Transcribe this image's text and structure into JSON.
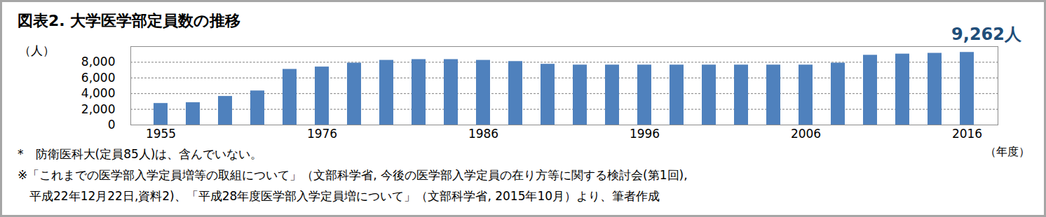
{
  "chart_data": {
    "type": "bar",
    "title": "図表2. 大学医学部定員数の推移",
    "annotation": "9,262人",
    "y_label": "（人）",
    "x_label": "（年度）",
    "categories": [
      "1955",
      null,
      null,
      null,
      null,
      "1976",
      null,
      null,
      null,
      null,
      "1986",
      null,
      null,
      null,
      null,
      "1996",
      null,
      null,
      null,
      null,
      "2006",
      null,
      null,
      null,
      null,
      "2016"
    ],
    "values": [
      2750,
      2850,
      3650,
      4350,
      7100,
      7400,
      7900,
      8250,
      8350,
      8350,
      8250,
      8100,
      7750,
      7650,
      7650,
      7650,
      7650,
      7650,
      7650,
      7650,
      7650,
      7900,
      8900,
      9050,
      9150,
      9262
    ],
    "color": "#4f81bd",
    "ylim": [
      0,
      10000
    ],
    "yticks": [
      0,
      {
        "value": 2000,
        "label": "2,000"
      },
      {
        "value": 4000,
        "label": "4,000"
      },
      {
        "value": 6000,
        "label": "6,000"
      },
      {
        "value": 8000,
        "label": "8,000"
      }
    ],
    "grid": true,
    "notes": [
      "*　防衛医科大(定員85人)は、含んでいない。",
      "※「これまでの医学部入学定員増等の取組について」（文部科学省, 今後の医学部入学定員の在り方等に関する検討会(第1回),",
      "　平成22年12月22日,資料2)、「平成28年度医学部入学定員増について」（文部科学省, 2015年10月）より、筆者作成"
    ]
  }
}
